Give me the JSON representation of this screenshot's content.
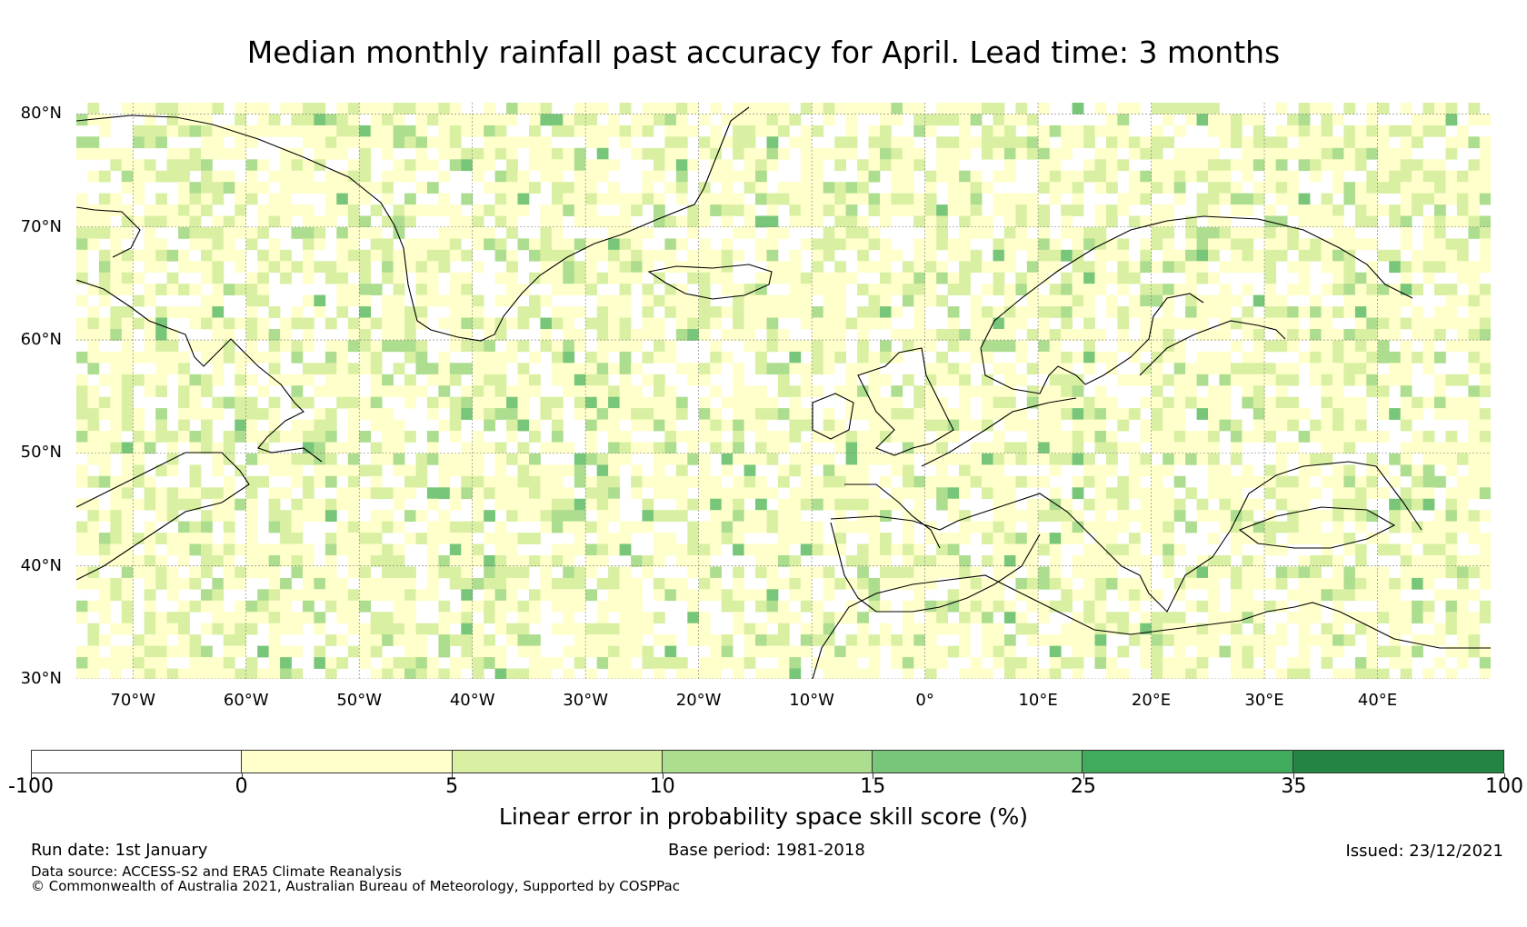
{
  "title": "Median monthly rainfall past accuracy for April. Lead time: 3 months",
  "map": {
    "lat_labels": [
      "80°N",
      "70°N",
      "60°N",
      "50°N",
      "40°N",
      "30°N"
    ],
    "lon_labels": [
      "70°W",
      "60°W",
      "50°W",
      "40°W",
      "30°W",
      "20°W",
      "10°W",
      "0°",
      "10°E",
      "20°E",
      "30°E",
      "40°E"
    ],
    "lat_values": [
      80,
      70,
      60,
      50,
      40,
      30
    ],
    "lon_values": [
      -70,
      -60,
      -50,
      -40,
      -30,
      -20,
      -10,
      0,
      10,
      20,
      30,
      40
    ],
    "extent": {
      "lon_min": -75,
      "lon_max": 50,
      "lat_min": 30,
      "lat_max": 81
    }
  },
  "colorbar": {
    "title": "Linear error in probability space skill score (%)",
    "tick_labels": [
      "-100",
      "0",
      "5",
      "10",
      "15",
      "25",
      "35",
      "100"
    ],
    "colors": [
      "#ffffff",
      "#ffffcc",
      "#d9f0a3",
      "#addd8e",
      "#78c679",
      "#41ab5d",
      "#238443"
    ]
  },
  "footer": {
    "run_date": "Run date: 1st January",
    "base_period": "Base period: 1981-2018",
    "issued": "Issued: 23/12/2021",
    "data_source": "Data source: ACCESS-S2 and ERA5 Climate Reanalysis",
    "copyright": "© Commonwealth of Australia 2021, Australian Bureau of Meteorology, Supported by COSPPac"
  }
}
